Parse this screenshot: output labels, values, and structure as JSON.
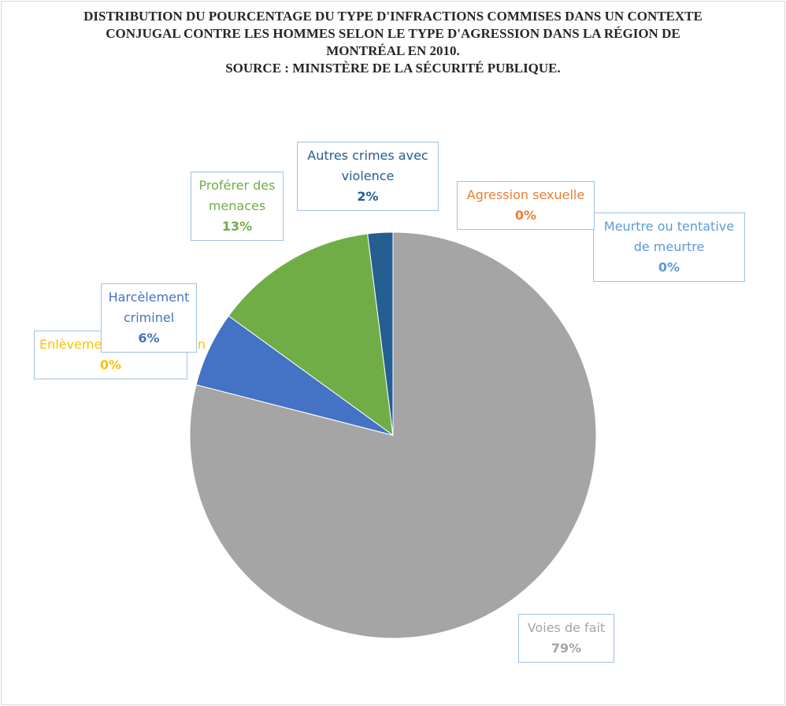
{
  "chart_data": {
    "type": "pie",
    "title": "DISTRIBUTION DU POURCENTAGE DU TYPE D'INFRACTIONS COMMISES DANS UN CONTEXTE CONJUGAL CONTRE LES HOMMES SELON LE TYPE D'AGRESSION DANS LA RÉGION DE MONTRÉAL EN 2010.",
    "subtitle": "SOURCE : MINISTÈRE DE LA SÉCURITÉ PUBLIQUE.",
    "categories": [
      "Meurtre ou tentative de meurtre",
      "Agression sexuelle",
      "Voies de fait",
      "Enlèvement/séquestration",
      "Harcèlement criminel",
      "Proférer des menaces",
      "Autres crimes avec violence"
    ],
    "values": [
      0,
      0,
      79,
      0,
      6,
      13,
      2
    ],
    "value_labels": [
      "0%",
      "0%",
      "79%",
      "0%",
      "6%",
      "13%",
      "2%"
    ],
    "colors": [
      "#5b9bd5",
      "#ed7d31",
      "#a5a5a5",
      "#ffc000",
      "#4472c4",
      "#70ad47",
      "#255e91"
    ]
  }
}
